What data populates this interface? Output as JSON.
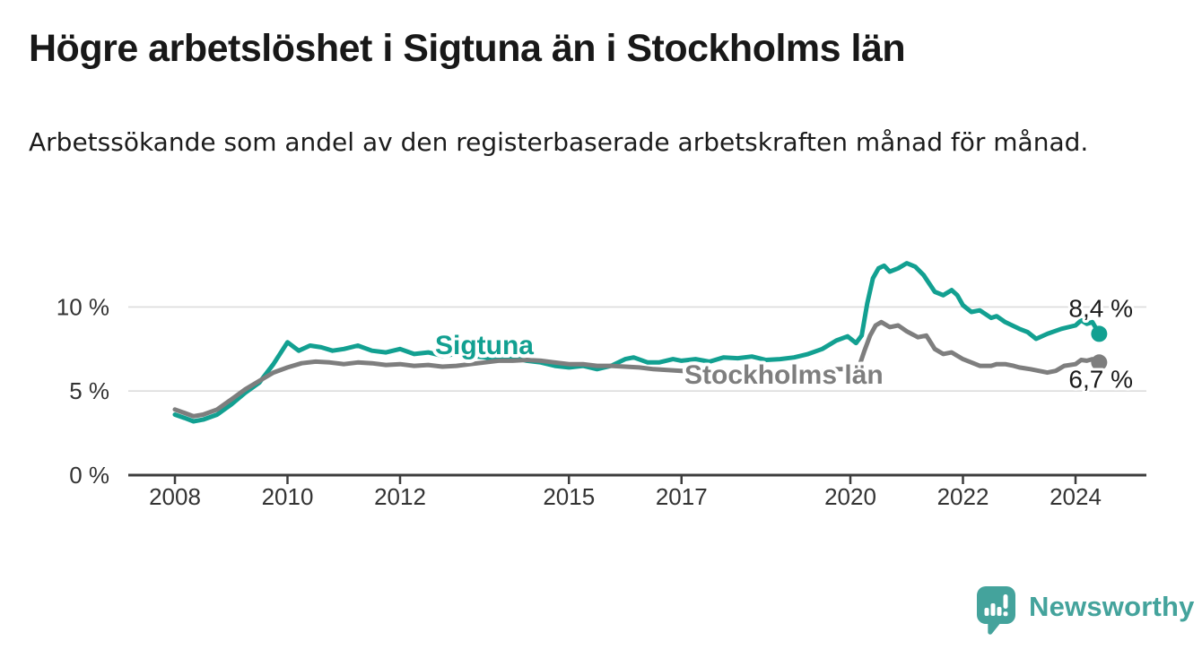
{
  "header": {
    "title": "Högre arbetslöshet i Sigtuna än i Stockholms län",
    "subtitle": "Arbetssökande som andel av den registerbaserade arbetskraften månad för månad."
  },
  "footer": {
    "brand": "Newsworthy"
  },
  "colors": {
    "accent_teal": "#12a091",
    "line_gray": "#7e7e7e",
    "text_dark": "#1a1a1a",
    "axis": "#3d3d3d",
    "gridline": "#dcdcdc",
    "logo_teal": "#44a39c",
    "background": "#ffffff"
  },
  "chart_data": {
    "type": "line",
    "title": "Högre arbetslöshet i Sigtuna än i Stockholms län",
    "subtitle": "Arbetssökande som andel av den registerbaserade arbetskraften månad för månad.",
    "unit": "%",
    "grid": "horizontal-only",
    "legend_position": "inline-labels",
    "x_axis": {
      "ticks": [
        2008,
        2010,
        2012,
        2015,
        2017,
        2020,
        2022,
        2024
      ],
      "range": [
        2007.2,
        2025.3
      ]
    },
    "y_axis": {
      "ticks": [
        {
          "value": 0,
          "label": "0 %"
        },
        {
          "value": 5,
          "label": "5 %"
        },
        {
          "value": 10,
          "label": "10 %"
        }
      ],
      "gridlines": [
        5,
        10
      ],
      "range": [
        0,
        13.6
      ]
    },
    "series": [
      {
        "name": "Sigtuna",
        "color": "#12a091",
        "end_label": "8,4 %",
        "last_value": 8.4,
        "points": [
          [
            2008.0,
            3.6
          ],
          [
            2008.17,
            3.4
          ],
          [
            2008.33,
            3.2
          ],
          [
            2008.5,
            3.3
          ],
          [
            2008.75,
            3.6
          ],
          [
            2009.0,
            4.2
          ],
          [
            2009.25,
            4.9
          ],
          [
            2009.5,
            5.5
          ],
          [
            2009.75,
            6.6
          ],
          [
            2010.0,
            7.9
          ],
          [
            2010.2,
            7.4
          ],
          [
            2010.4,
            7.7
          ],
          [
            2010.6,
            7.6
          ],
          [
            2010.8,
            7.4
          ],
          [
            2011.0,
            7.5
          ],
          [
            2011.25,
            7.7
          ],
          [
            2011.5,
            7.4
          ],
          [
            2011.75,
            7.3
          ],
          [
            2012.0,
            7.5
          ],
          [
            2012.25,
            7.2
          ],
          [
            2012.5,
            7.3
          ],
          [
            2012.75,
            7.1
          ],
          [
            2013.0,
            7.2
          ],
          [
            2013.25,
            7.1
          ],
          [
            2013.5,
            7.0
          ],
          [
            2013.75,
            6.9
          ],
          [
            2014.0,
            7.0
          ],
          [
            2014.25,
            6.8
          ],
          [
            2014.5,
            6.7
          ],
          [
            2014.75,
            6.5
          ],
          [
            2015.0,
            6.4
          ],
          [
            2015.25,
            6.5
          ],
          [
            2015.5,
            6.3
          ],
          [
            2015.75,
            6.5
          ],
          [
            2016.0,
            6.9
          ],
          [
            2016.15,
            7.0
          ],
          [
            2016.4,
            6.7
          ],
          [
            2016.6,
            6.7
          ],
          [
            2016.85,
            6.9
          ],
          [
            2017.0,
            6.8
          ],
          [
            2017.25,
            6.9
          ],
          [
            2017.5,
            6.75
          ],
          [
            2017.75,
            7.0
          ],
          [
            2018.0,
            6.95
          ],
          [
            2018.25,
            7.05
          ],
          [
            2018.5,
            6.85
          ],
          [
            2018.75,
            6.9
          ],
          [
            2019.0,
            7.0
          ],
          [
            2019.25,
            7.2
          ],
          [
            2019.5,
            7.5
          ],
          [
            2019.75,
            8.0
          ],
          [
            2019.95,
            8.25
          ],
          [
            2020.1,
            7.85
          ],
          [
            2020.2,
            8.3
          ],
          [
            2020.3,
            10.2
          ],
          [
            2020.4,
            11.7
          ],
          [
            2020.5,
            12.3
          ],
          [
            2020.6,
            12.45
          ],
          [
            2020.7,
            12.1
          ],
          [
            2020.85,
            12.3
          ],
          [
            2021.0,
            12.6
          ],
          [
            2021.15,
            12.4
          ],
          [
            2021.3,
            11.9
          ],
          [
            2021.5,
            10.9
          ],
          [
            2021.65,
            10.7
          ],
          [
            2021.8,
            11.0
          ],
          [
            2021.9,
            10.7
          ],
          [
            2022.0,
            10.1
          ],
          [
            2022.15,
            9.7
          ],
          [
            2022.3,
            9.8
          ],
          [
            2022.5,
            9.35
          ],
          [
            2022.6,
            9.45
          ],
          [
            2022.75,
            9.1
          ],
          [
            2023.0,
            8.7
          ],
          [
            2023.15,
            8.5
          ],
          [
            2023.3,
            8.1
          ],
          [
            2023.5,
            8.4
          ],
          [
            2023.75,
            8.7
          ],
          [
            2024.0,
            8.9
          ],
          [
            2024.1,
            9.2
          ],
          [
            2024.2,
            9.0
          ],
          [
            2024.3,
            9.1
          ],
          [
            2024.42,
            8.4
          ]
        ]
      },
      {
        "name": "Stockholms län",
        "color": "#7e7e7e",
        "end_label": "6,7 %",
        "last_value": 6.7,
        "points": [
          [
            2008.0,
            3.9
          ],
          [
            2008.17,
            3.7
          ],
          [
            2008.33,
            3.5
          ],
          [
            2008.5,
            3.6
          ],
          [
            2008.75,
            3.9
          ],
          [
            2009.0,
            4.5
          ],
          [
            2009.25,
            5.1
          ],
          [
            2009.5,
            5.6
          ],
          [
            2009.75,
            6.1
          ],
          [
            2010.0,
            6.4
          ],
          [
            2010.25,
            6.65
          ],
          [
            2010.5,
            6.75
          ],
          [
            2010.75,
            6.7
          ],
          [
            2011.0,
            6.6
          ],
          [
            2011.25,
            6.7
          ],
          [
            2011.5,
            6.65
          ],
          [
            2011.75,
            6.55
          ],
          [
            2012.0,
            6.6
          ],
          [
            2012.25,
            6.5
          ],
          [
            2012.5,
            6.55
          ],
          [
            2012.75,
            6.45
          ],
          [
            2013.0,
            6.5
          ],
          [
            2013.25,
            6.6
          ],
          [
            2013.5,
            6.7
          ],
          [
            2013.75,
            6.8
          ],
          [
            2014.0,
            6.8
          ],
          [
            2014.25,
            6.85
          ],
          [
            2014.5,
            6.8
          ],
          [
            2014.75,
            6.7
          ],
          [
            2015.0,
            6.6
          ],
          [
            2015.25,
            6.6
          ],
          [
            2015.5,
            6.5
          ],
          [
            2015.75,
            6.5
          ],
          [
            2016.0,
            6.45
          ],
          [
            2016.25,
            6.4
          ],
          [
            2016.5,
            6.3
          ],
          [
            2016.75,
            6.25
          ],
          [
            2017.0,
            6.2
          ],
          [
            2017.25,
            6.15
          ],
          [
            2017.5,
            6.1
          ],
          [
            2017.75,
            6.1
          ],
          [
            2018.0,
            6.05
          ],
          [
            2018.25,
            6.0
          ],
          [
            2018.5,
            6.0
          ],
          [
            2018.75,
            6.0
          ],
          [
            2019.0,
            6.0
          ],
          [
            2019.25,
            6.1
          ],
          [
            2019.5,
            6.2
          ],
          [
            2019.75,
            6.3
          ],
          [
            2020.0,
            6.3
          ],
          [
            2020.15,
            6.4
          ],
          [
            2020.25,
            7.4
          ],
          [
            2020.35,
            8.3
          ],
          [
            2020.45,
            8.9
          ],
          [
            2020.55,
            9.1
          ],
          [
            2020.7,
            8.8
          ],
          [
            2020.85,
            8.9
          ],
          [
            2021.0,
            8.55
          ],
          [
            2021.2,
            8.2
          ],
          [
            2021.35,
            8.3
          ],
          [
            2021.5,
            7.5
          ],
          [
            2021.65,
            7.2
          ],
          [
            2021.8,
            7.3
          ],
          [
            2022.0,
            6.9
          ],
          [
            2022.15,
            6.7
          ],
          [
            2022.3,
            6.5
          ],
          [
            2022.5,
            6.5
          ],
          [
            2022.6,
            6.6
          ],
          [
            2022.75,
            6.6
          ],
          [
            2022.9,
            6.5
          ],
          [
            2023.0,
            6.4
          ],
          [
            2023.2,
            6.3
          ],
          [
            2023.35,
            6.2
          ],
          [
            2023.5,
            6.1
          ],
          [
            2023.65,
            6.2
          ],
          [
            2023.8,
            6.5
          ],
          [
            2024.0,
            6.6
          ],
          [
            2024.1,
            6.85
          ],
          [
            2024.2,
            6.8
          ],
          [
            2024.3,
            6.9
          ],
          [
            2024.42,
            6.7
          ]
        ]
      }
    ]
  }
}
